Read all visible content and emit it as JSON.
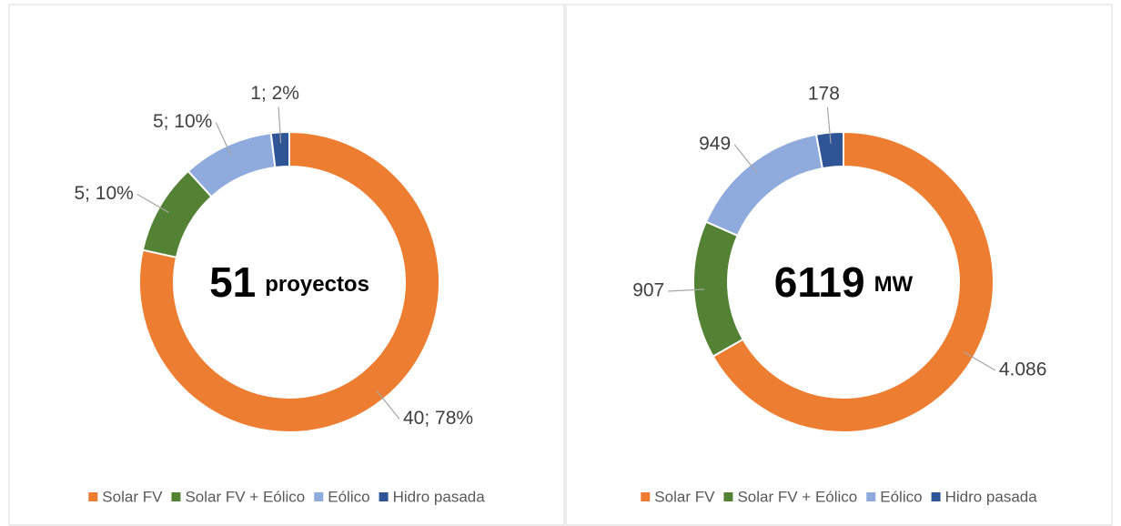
{
  "chart_data": [
    {
      "type": "donut",
      "center_value": 51,
      "center_unit": "proyectos",
      "categories": [
        "Solar FV",
        "Solar FV + Eólico",
        "Eólico",
        "Hidro pasada"
      ],
      "values": [
        40,
        5,
        5,
        1
      ],
      "value_labels": [
        "40; 78%",
        "5; 10%",
        "5; 10%",
        "1; 2%"
      ],
      "colors": [
        "#ED7D31",
        "#548235",
        "#8FAADC",
        "#2F5597"
      ],
      "legend": "bottom"
    },
    {
      "type": "donut",
      "center_value": 6119,
      "center_unit": "MW",
      "categories": [
        "Solar FV",
        "Solar FV + Eólico",
        "Eólico",
        "Hidro pasada"
      ],
      "values": [
        4086,
        907,
        949,
        178
      ],
      "value_labels": [
        "4.086",
        "907",
        "949",
        "178"
      ],
      "colors": [
        "#ED7D31",
        "#548235",
        "#8FAADC",
        "#2F5597"
      ],
      "legend": "bottom"
    }
  ]
}
